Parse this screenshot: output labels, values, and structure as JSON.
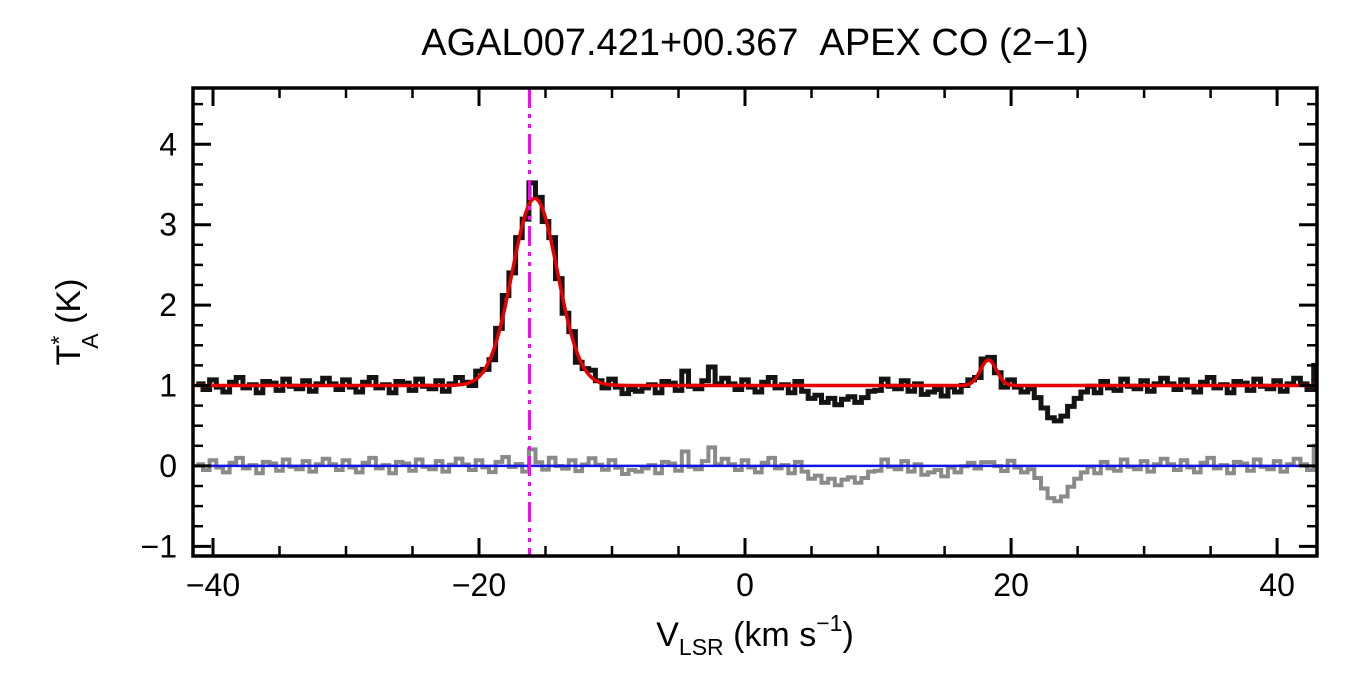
{
  "page": {
    "background": "#ffffff"
  },
  "chart_data": {
    "type": "line",
    "title": "AGAL007.421+00.367  APEX CO (2−1)",
    "xlabel": {
      "main": "V",
      "sub": "LSR",
      "mid": " (km s",
      "sup": "−1",
      "end": ")"
    },
    "ylabel": {
      "main": "T",
      "sup": "*",
      "sub": "A",
      "rest": " (K)"
    },
    "xlim": [
      -41.5,
      43.0
    ],
    "ylim": [
      -1.12,
      4.7
    ],
    "xticks": [
      -40,
      -20,
      0,
      20,
      40
    ],
    "xtick_labels": [
      "−40",
      "−20",
      "0",
      "20",
      "40"
    ],
    "yticks": [
      -1,
      0,
      1,
      2,
      3,
      4
    ],
    "ytick_labels": [
      "−1",
      "0",
      "1",
      "2",
      "3",
      "4"
    ],
    "x_minor_step": 5,
    "y_minor_step": 0.25,
    "grid": false,
    "legend": "none",
    "x_start": -41.0,
    "x_step": 0.5,
    "x_units": "km/s",
    "y_units": "K",
    "spectrum": {
      "name": "observed-spectrum",
      "style": "histogram",
      "color": "#141414",
      "linewidth": 5,
      "values": [
        1.02,
        0.95,
        1.07,
        0.98,
        0.92,
        1.04,
        1.1,
        0.97,
        1.01,
        0.91,
        1.05,
        1.03,
        0.94,
        1.08,
        0.99,
        0.96,
        1.06,
        0.93,
        1.02,
        1.09,
        1.02,
        0.95,
        1.07,
        0.98,
        0.92,
        1.04,
        1.1,
        0.97,
        1.01,
        0.91,
        1.05,
        1.03,
        0.94,
        1.08,
        0.99,
        0.96,
        1.06,
        0.93,
        1.02,
        1.1,
        1.04,
        1.0,
        1.18,
        1.2,
        1.32,
        1.71,
        2.12,
        2.4,
        2.84,
        3.07,
        3.52,
        3.34,
        3.04,
        2.84,
        2.33,
        1.9,
        1.67,
        1.29,
        1.21,
        1.19,
        1.06,
        0.97,
        1.08,
        0.98,
        0.9,
        0.95,
        0.93,
        0.97,
        1.01,
        0.91,
        1.05,
        1.03,
        0.94,
        1.18,
        0.99,
        0.96,
        1.06,
        1.23,
        1.02,
        1.09,
        1.02,
        0.95,
        1.07,
        0.98,
        0.92,
        1.04,
        1.1,
        0.97,
        1.01,
        0.91,
        1.05,
        0.93,
        0.84,
        0.88,
        0.79,
        0.84,
        0.76,
        0.83,
        0.86,
        0.79,
        0.85,
        0.93,
        0.94,
        1.08,
        0.99,
        0.96,
        1.06,
        0.93,
        1.02,
        0.89,
        0.92,
        0.95,
        0.87,
        0.98,
        0.92,
        1.0,
        1.07,
        1.1,
        1.33,
        1.35,
        1.16,
        0.98,
        1.07,
        0.98,
        0.92,
        0.96,
        0.85,
        0.72,
        0.6,
        0.56,
        0.62,
        0.74,
        0.84,
        0.92,
        0.99,
        0.91,
        1.05,
        0.97,
        0.94,
        1.08,
        0.99,
        0.96,
        1.06,
        0.93,
        1.02,
        1.09,
        1.02,
        0.95,
        1.07,
        0.98,
        0.92,
        1.04,
        1.1,
        0.97,
        1.01,
        0.91,
        1.05,
        1.03,
        0.94,
        1.08,
        0.99,
        0.96,
        1.06,
        0.93,
        1.02,
        1.09,
        1.02,
        0.95,
        1.25
      ]
    },
    "fit": {
      "name": "gaussian-fit",
      "style": "smooth-curve",
      "color": "#e60000",
      "linewidth": 3.5,
      "baseline": 1.0,
      "gaussians": [
        {
          "center": -15.8,
          "amplitude": 2.33,
          "sigma": 1.7
        },
        {
          "center": 18.3,
          "amplitude": 0.32,
          "sigma": 0.6
        }
      ]
    },
    "residual": {
      "name": "fit-residual",
      "style": "histogram",
      "color": "#8a8a8a",
      "linewidth": 4,
      "rule": "spectrum minus fit"
    },
    "zero_line": {
      "y": 0,
      "color": "#1414e6",
      "linewidth": 2.5
    },
    "marker_line": {
      "x": -16.2,
      "color": "#ff00ff",
      "linewidth": 3,
      "style": "dash-dot"
    }
  }
}
